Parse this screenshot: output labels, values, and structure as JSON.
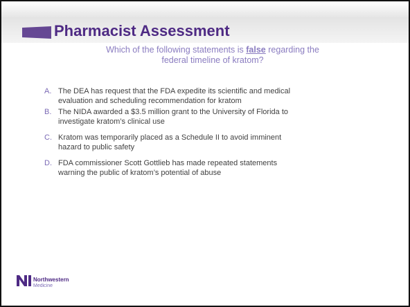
{
  "title": "Pharmacist Assessment",
  "question": {
    "lead": "Which of the following statements is",
    "emphasis": "false",
    "line1_end": "regarding the",
    "line2": "federal timeline of kratom?"
  },
  "options": [
    {
      "letter": "A.",
      "lines": [
        "The DEA has request that the FDA expedite its scientific and medical",
        "evaluation and scheduling recommendation for kratom"
      ]
    },
    {
      "letter": "B.",
      "lines": [
        "The NIDA awarded a $3.5 million grant to the University of Florida to",
        "investigate kratom’s clinical use"
      ]
    },
    {
      "letter": "C.",
      "lines": [
        "Kratom was temporarily placed as a Schedule II to avoid imminent",
        "hazard to public safety"
      ]
    },
    {
      "letter": "D.",
      "lines": [
        "FDA commissioner Scott Gottlieb has made repeated statements",
        "warning the public of kratom’s potential of abuse"
      ]
    }
  ],
  "logo": {
    "name": "Northwestern",
    "sub": "Medicine"
  }
}
